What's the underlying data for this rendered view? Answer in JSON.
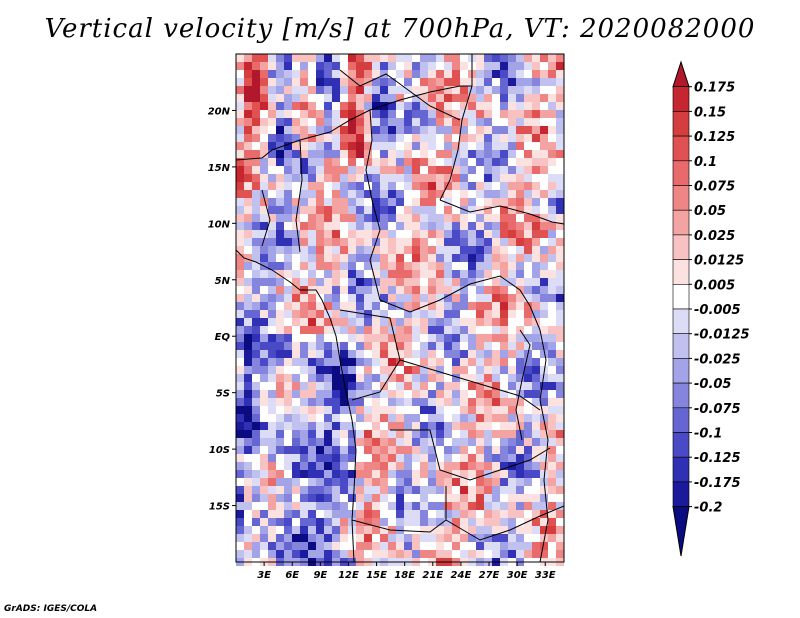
{
  "title": "Vertical velocity [m/s] at 700hPa, VT: 2020082000",
  "credit": "GrADS: IGES/COLA",
  "chart_data": {
    "type": "heatmap",
    "title": "Vertical velocity [m/s] at 700hPa, VT: 2020082000",
    "variable_units": "m/s",
    "level": "700hPa",
    "valid_time": "2020082000",
    "lon_range": [
      0,
      35
    ],
    "lat_range": [
      -20,
      25
    ],
    "x_ticks": [
      "3E",
      "6E",
      "9E",
      "12E",
      "15E",
      "18E",
      "21E",
      "24E",
      "27E",
      "30E",
      "33E"
    ],
    "x_tick_values": [
      3,
      6,
      9,
      12,
      15,
      18,
      21,
      24,
      27,
      30,
      33
    ],
    "y_ticks": [
      "20N",
      "15N",
      "10N",
      "5N",
      "EQ",
      "5S",
      "10S",
      "15S"
    ],
    "y_tick_values": [
      20,
      15,
      10,
      5,
      0,
      -5,
      -10,
      -15
    ],
    "colorbar": {
      "labels": [
        "0.175",
        "0.15",
        "0.125",
        "0.1",
        "0.075",
        "0.05",
        "0.025",
        "0.0125",
        "0.005",
        "-0.005",
        "-0.0125",
        "-0.025",
        "-0.05",
        "-0.075",
        "-0.1",
        "-0.125",
        "-0.175",
        "-0.2"
      ],
      "colors": [
        "#b2182b",
        "#c6262f",
        "#d53e3e",
        "#e05252",
        "#e86a6a",
        "#ef8686",
        "#f4a3a3",
        "#f8c2c2",
        "#fce1e1",
        "#ffffff",
        "#dcdcf6",
        "#c1c1f0",
        "#a3a3e8",
        "#8585de",
        "#6666d2",
        "#4a4ac6",
        "#3030b4",
        "#1a1a9a",
        "#0b0b82"
      ],
      "extend": "both"
    }
  }
}
